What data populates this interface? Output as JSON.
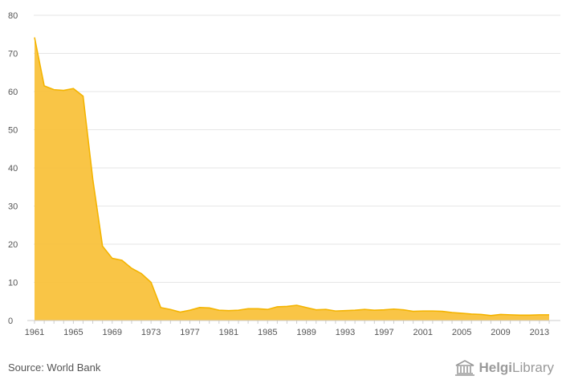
{
  "footer": {
    "source": "Source: World Bank",
    "brand_strong": "Helgi",
    "brand_light": "Library",
    "brand_logo_icon": "library-building-icon"
  },
  "chart_data": {
    "type": "area",
    "title": "",
    "xlabel": "",
    "ylabel": "",
    "ylim": [
      0,
      80
    ],
    "yticks": [
      "0",
      "10",
      "20",
      "30",
      "40",
      "50",
      "60",
      "70",
      "80"
    ],
    "xtick_labels": [
      "1961",
      "1965",
      "1969",
      "1973",
      "1977",
      "1981",
      "1985",
      "1989",
      "1993",
      "1997",
      "2001",
      "2005",
      "2009",
      "2013"
    ],
    "grid": true,
    "legend": "none",
    "color": "#f9c23c",
    "x": [
      1961,
      1962,
      1963,
      1964,
      1965,
      1966,
      1967,
      1968,
      1969,
      1970,
      1971,
      1972,
      1973,
      1974,
      1975,
      1976,
      1977,
      1978,
      1979,
      1980,
      1981,
      1982,
      1983,
      1984,
      1985,
      1986,
      1987,
      1988,
      1989,
      1990,
      1991,
      1992,
      1993,
      1994,
      1995,
      1996,
      1997,
      1998,
      1999,
      2000,
      2001,
      2002,
      2003,
      2004,
      2005,
      2006,
      2007,
      2008,
      2009,
      2010,
      2011,
      2012,
      2013,
      2014
    ],
    "values": [
      74.2,
      61.5,
      60.5,
      60.3,
      60.8,
      58.8,
      37.0,
      19.5,
      16.3,
      15.8,
      13.7,
      12.3,
      10.0,
      3.4,
      2.9,
      2.2,
      2.7,
      3.4,
      3.3,
      2.7,
      2.6,
      2.7,
      3.1,
      3.1,
      2.9,
      3.6,
      3.7,
      4.0,
      3.4,
      2.8,
      2.9,
      2.5,
      2.6,
      2.7,
      2.9,
      2.7,
      2.8,
      3.0,
      2.8,
      2.4,
      2.5,
      2.5,
      2.4,
      2.1,
      1.9,
      1.7,
      1.6,
      1.3,
      1.6,
      1.5,
      1.4,
      1.4,
      1.5,
      1.5
    ]
  }
}
